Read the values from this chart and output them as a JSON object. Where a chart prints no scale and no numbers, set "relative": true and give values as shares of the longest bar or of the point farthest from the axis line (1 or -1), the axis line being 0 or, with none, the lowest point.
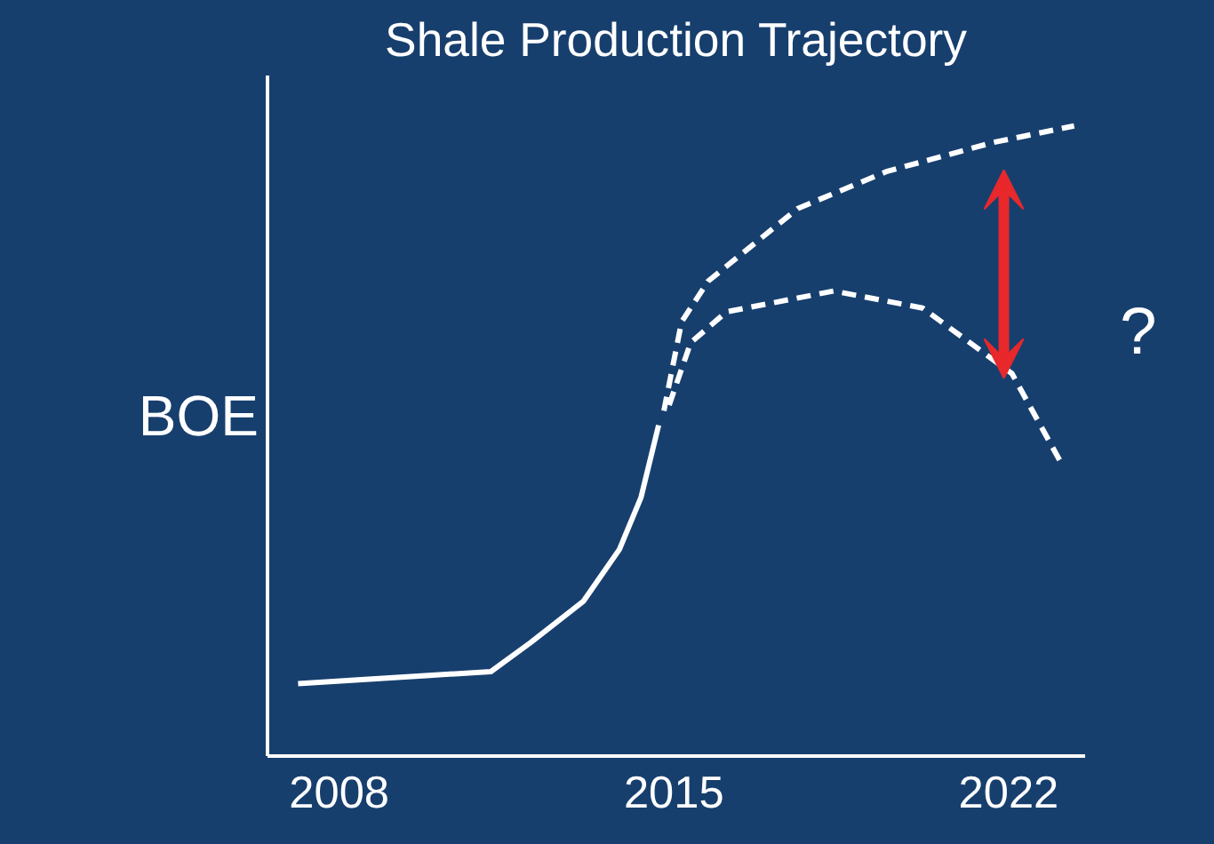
{
  "chart_data": {
    "type": "line",
    "title": "Shale Production Trajectory",
    "ylabel": "BOE",
    "relative": true,
    "xlim": [
      2006.5,
      2023.6
    ],
    "xticks": [
      2008,
      2015,
      2022
    ],
    "grid": false,
    "annotations": [
      "?"
    ],
    "series": [
      {
        "color": "#ffffff",
        "line_style": "solid",
        "x": [
          2007.14,
          2011.17,
          2012.0,
          2013.11,
          2013.86,
          2014.31,
          2014.68
        ],
        "values": [
          0.115,
          0.134,
          0.18,
          0.246,
          0.328,
          0.41,
          0.525
        ]
      },
      {
        "color": "#ffffff",
        "line_style": "dashed",
        "x": [
          2014.79,
          2015.16,
          2015.72,
          2017.59,
          2019.46,
          2021.69,
          2023.37
        ],
        "values": [
          0.548,
          0.689,
          0.754,
          0.869,
          0.928,
          0.974,
          1.0
        ]
      },
      {
        "color": "#ffffff",
        "line_style": "dashed",
        "x": [
          2014.9,
          2015.35,
          2016.1,
          2018.34,
          2020.2,
          2022.07,
          2023.07
        ],
        "values": [
          0.557,
          0.656,
          0.705,
          0.738,
          0.711,
          0.607,
          0.469
        ]
      }
    ]
  }
}
